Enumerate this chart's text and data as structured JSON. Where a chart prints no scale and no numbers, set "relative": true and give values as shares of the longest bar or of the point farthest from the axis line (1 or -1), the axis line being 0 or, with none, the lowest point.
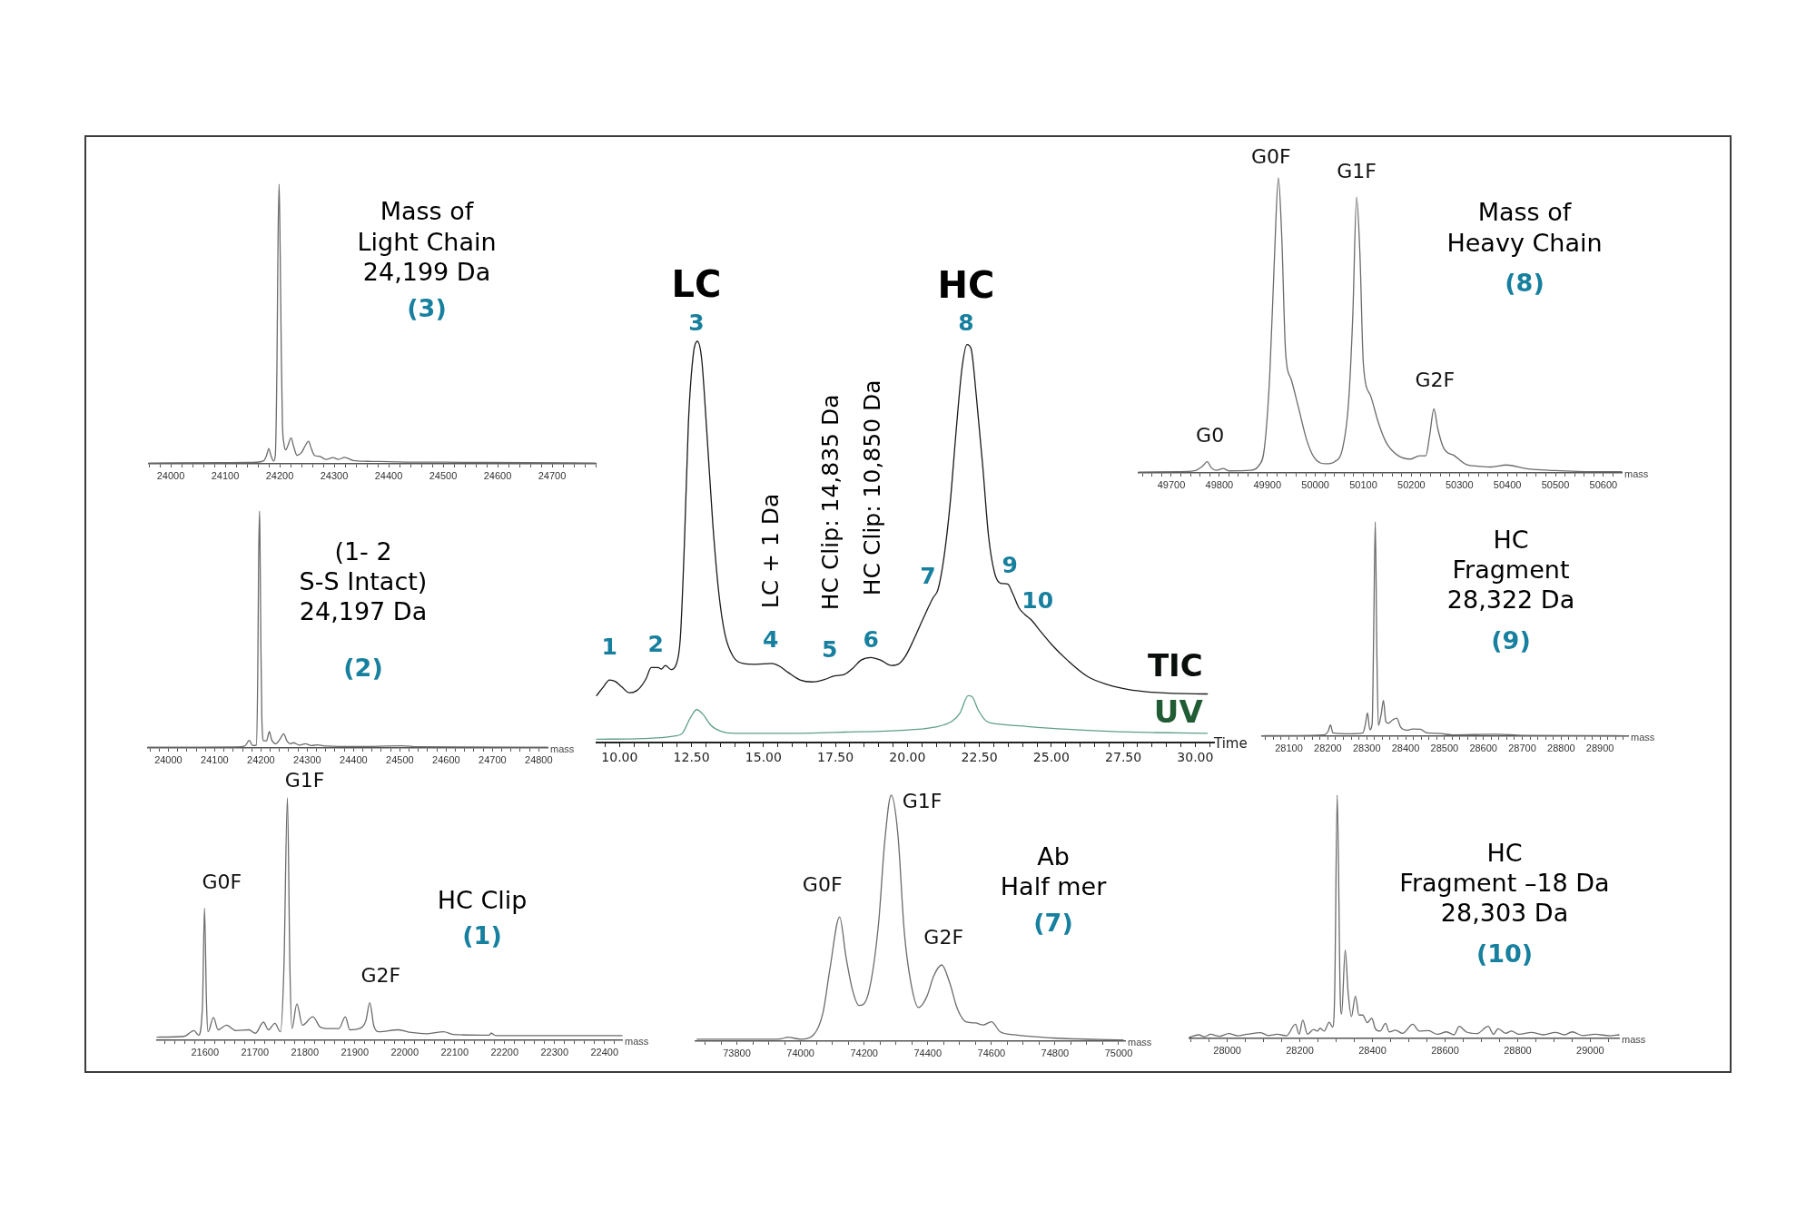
{
  "chart_data": [
    {
      "type": "line",
      "title": "Mass of\nLight Chain\n24,199 Da",
      "subtitle": "(3)",
      "relative": true,
      "color": "#6b6b6b",
      "x": [
        23960,
        24090,
        24150,
        24170,
        24176,
        24180,
        24184,
        24189,
        24192,
        24195,
        24197,
        24199,
        24201,
        24203,
        24205,
        24208,
        24211,
        24215,
        24221,
        24226,
        24232,
        24240,
        24247,
        24253,
        24258,
        24264,
        24273,
        24285,
        24298,
        24308,
        24319,
        24335,
        24360,
        24400,
        24450,
        24500,
        24570,
        24650,
        24780
      ],
      "values": [
        0.003,
        0.004,
        0.005,
        0.01,
        0.03,
        0.055,
        0.03,
        0.01,
        0.03,
        0.35,
        0.8,
        1,
        0.75,
        0.4,
        0.15,
        0.07,
        0.05,
        0.065,
        0.093,
        0.06,
        0.03,
        0.04,
        0.065,
        0.081,
        0.055,
        0.03,
        0.027,
        0.016,
        0.022,
        0.016,
        0.023,
        0.012,
        0.009,
        0.008,
        0.006,
        0.006,
        0.005,
        0.004,
        0.003
      ],
      "xlim": [
        23960,
        24780
      ],
      "xticks": [
        {
          "value": 23960,
          "label": null
        },
        {
          "value": 23980,
          "label": null
        },
        24000,
        {
          "value": 24020,
          "label": null
        },
        {
          "value": 24040,
          "label": null
        },
        {
          "value": 24060,
          "label": null
        },
        {
          "value": 24080,
          "label": null
        },
        24100,
        {
          "value": 24120,
          "label": null
        },
        {
          "value": 24140,
          "label": null
        },
        {
          "value": 24160,
          "label": null
        },
        {
          "value": 24180,
          "label": null
        },
        24200,
        {
          "value": 24220,
          "label": null
        },
        {
          "value": 24240,
          "label": null
        },
        {
          "value": 24260,
          "label": null
        },
        {
          "value": 24280,
          "label": null
        },
        24300,
        {
          "value": 24320,
          "label": null
        },
        {
          "value": 24340,
          "label": null
        },
        {
          "value": 24360,
          "label": null
        },
        {
          "value": 24380,
          "label": null
        },
        24400,
        {
          "value": 24420,
          "label": null
        },
        {
          "value": 24440,
          "label": null
        },
        {
          "value": 24460,
          "label": null
        },
        {
          "value": 24480,
          "label": null
        },
        24500,
        {
          "value": 24520,
          "label": null
        },
        {
          "value": 24540,
          "label": null
        },
        {
          "value": 24560,
          "label": null
        },
        {
          "value": 24580,
          "label": null
        },
        24600,
        {
          "value": 24620,
          "label": null
        },
        {
          "value": 24640,
          "label": null
        },
        {
          "value": 24660,
          "label": null
        },
        {
          "value": 24680,
          "label": null
        },
        24700,
        {
          "value": 24720,
          "label": null
        },
        {
          "value": 24740,
          "label": null
        },
        {
          "value": 24760,
          "label": null
        },
        {
          "value": 24780,
          "label": null
        }
      ]
    },
    {
      "type": "line",
      "relative": true,
      "xlabel": "Time",
      "series": [
        {
          "name": "TIC",
          "color": "#1a1a1a",
          "x": [
            9.2,
            9.44,
            9.65,
            9.86,
            10.07,
            10.35,
            10.63,
            10.92,
            11.1,
            11.34,
            11.45,
            11.59,
            11.79,
            11.97,
            12.11,
            12.25,
            12.39,
            12.56,
            12.7,
            12.85,
            13.03,
            13.24,
            13.45,
            13.66,
            13.94,
            14.3,
            14.72,
            15.28,
            15.56,
            15.85,
            16.27,
            16.69,
            17.11,
            17.46,
            17.82,
            18.1,
            18.38,
            18.73,
            19.08,
            19.44,
            19.72,
            19.93,
            20.21,
            20.56,
            20.89,
            21.06,
            21.27,
            21.48,
            21.69,
            21.9,
            22.07,
            22.21,
            22.39,
            22.61,
            22.82,
            23.03,
            23.24,
            23.48,
            23.66,
            23.87,
            24.08,
            24.3,
            24.58,
            25,
            25.56,
            26.27,
            26.97,
            27.68,
            28.38,
            29.08,
            30.42
          ],
          "values": [
            0.117,
            0.139,
            0.156,
            0.152,
            0.139,
            0.124,
            0.131,
            0.159,
            0.187,
            0.187,
            0.183,
            0.192,
            0.182,
            0.195,
            0.26,
            0.492,
            0.795,
            0.967,
            1,
            0.957,
            0.775,
            0.543,
            0.371,
            0.27,
            0.215,
            0.197,
            0.195,
            0.197,
            0.19,
            0.175,
            0.156,
            0.151,
            0.157,
            0.166,
            0.17,
            0.185,
            0.205,
            0.212,
            0.205,
            0.192,
            0.197,
            0.215,
            0.255,
            0.311,
            0.361,
            0.381,
            0.462,
            0.593,
            0.775,
            0.936,
            0.992,
            0.982,
            0.866,
            0.694,
            0.513,
            0.422,
            0.397,
            0.395,
            0.371,
            0.336,
            0.319,
            0.306,
            0.281,
            0.245,
            0.205,
            0.164,
            0.144,
            0.132,
            0.126,
            0.123,
            0.121
          ]
        },
        {
          "name": "UV",
          "color": "#5e9e8a",
          "x": [
            9.2,
            10.77,
            11.9,
            12.18,
            12.44,
            12.68,
            12.89,
            13.17,
            13.52,
            14.01,
            15.7,
            17.82,
            19.93,
            20.92,
            21.55,
            21.83,
            22.11,
            22.25,
            22.46,
            22.75,
            23.17,
            24.15,
            25.56,
            26.97,
            28.38,
            30.42
          ],
          "values": [
            0.008,
            0.01,
            0.016,
            0.023,
            0.059,
            0.082,
            0.071,
            0.043,
            0.028,
            0.023,
            0.023,
            0.026,
            0.031,
            0.038,
            0.053,
            0.074,
            0.117,
            0.114,
            0.081,
            0.053,
            0.046,
            0.04,
            0.033,
            0.028,
            0.025,
            0.023
          ]
        }
      ],
      "annotations": [
        {
          "text": "LC",
          "x": 12.7,
          "y": 1
        },
        {
          "text": "HC",
          "x": 22.07,
          "y": 0.992
        },
        {
          "text": "1",
          "x": 9.65,
          "y": 0.156
        },
        {
          "text": "2",
          "x": 11.1,
          "y": 0.187
        },
        {
          "text": "3",
          "x": 12.7,
          "y": 1
        },
        {
          "text": "4",
          "x": 15.28,
          "y": 0.197
        },
        {
          "text": "5",
          "x": 17.3,
          "y": 0.162
        },
        {
          "text": "6",
          "x": 18.73,
          "y": 0.212
        },
        {
          "text": "7",
          "x": 21.06,
          "y": 0.381
        },
        {
          "text": "8",
          "x": 22.07,
          "y": 0.992
        },
        {
          "text": "9",
          "x": 23.24,
          "y": 0.397
        },
        {
          "text": "10",
          "x": 24.08,
          "y": 0.319
        },
        {
          "text": "LC + 1 Da",
          "x": 15.28,
          "y": 0.197
        },
        {
          "text": "HC Clip: 14,835 Da",
          "x": 17.3,
          "y": 0.162
        },
        {
          "text": "HC Clip: 10,850 Da",
          "x": 18.73,
          "y": 0.212
        }
      ],
      "xlim": [
        9.2,
        30.65
      ],
      "xticks": [
        {
          "value": 9.5,
          "label": null
        },
        {
          "value": 10,
          "label": "10.00"
        },
        {
          "value": 10.5,
          "label": null
        },
        {
          "value": 11,
          "label": null
        },
        {
          "value": 11.5,
          "label": null
        },
        {
          "value": 12,
          "label": null
        },
        {
          "value": 12.5,
          "label": "12.50"
        },
        {
          "value": 13,
          "label": null
        },
        {
          "value": 13.5,
          "label": null
        },
        {
          "value": 14,
          "label": null
        },
        {
          "value": 14.5,
          "label": null
        },
        {
          "value": 15,
          "label": "15.00"
        },
        {
          "value": 15.5,
          "label": null
        },
        {
          "value": 16,
          "label": null
        },
        {
          "value": 16.5,
          "label": null
        },
        {
          "value": 17,
          "label": null
        },
        {
          "value": 17.5,
          "label": "17.50"
        },
        {
          "value": 18,
          "label": null
        },
        {
          "value": 18.5,
          "label": null
        },
        {
          "value": 19,
          "label": null
        },
        {
          "value": 19.5,
          "label": null
        },
        {
          "value": 20,
          "label": "20.00"
        },
        {
          "value": 20.5,
          "label": null
        },
        {
          "value": 21,
          "label": null
        },
        {
          "value": 21.5,
          "label": null
        },
        {
          "value": 22,
          "label": null
        },
        {
          "value": 22.5,
          "label": "22.50"
        },
        {
          "value": 23,
          "label": null
        },
        {
          "value": 23.5,
          "label": null
        },
        {
          "value": 24,
          "label": null
        },
        {
          "value": 24.5,
          "label": null
        },
        {
          "value": 25,
          "label": "25.00"
        },
        {
          "value": 25.5,
          "label": null
        },
        {
          "value": 26,
          "label": null
        },
        {
          "value": 26.5,
          "label": null
        },
        {
          "value": 27,
          "label": null
        },
        {
          "value": 27.5,
          "label": "27.50"
        },
        {
          "value": 28,
          "label": null
        },
        {
          "value": 28.5,
          "label": null
        },
        {
          "value": 29,
          "label": null
        },
        {
          "value": 29.5,
          "label": null
        },
        {
          "value": 30,
          "label": "30.00"
        },
        {
          "value": 30.5,
          "label": null
        }
      ]
    },
    {
      "type": "line",
      "title": "Mass of\nHeavy Chain",
      "subtitle": "(8)",
      "relative": true,
      "color": "#6b6b6b",
      "xlabel": "mass",
      "x": [
        49632,
        49715,
        49748,
        49765,
        49775,
        49783,
        49794,
        49808,
        49820,
        49865,
        49882,
        49894,
        49905,
        49915,
        49923,
        49930,
        49938,
        49950,
        49965,
        49982,
        49998,
        50023,
        50040,
        50057,
        50069,
        50078,
        50086,
        50093,
        50100,
        50115,
        50132,
        50148,
        50173,
        50198,
        50217,
        50230,
        50238,
        50247,
        50255,
        50267,
        50290,
        50315,
        50340,
        50365,
        50398,
        50440,
        50498,
        50582,
        50638
      ],
      "values": [
        0.003,
        0.004,
        0.007,
        0.023,
        0.038,
        0.018,
        0.009,
        0.015,
        0.007,
        0.009,
        0.024,
        0.085,
        0.329,
        0.736,
        1,
        0.804,
        0.411,
        0.316,
        0.221,
        0.112,
        0.051,
        0.031,
        0.038,
        0.085,
        0.234,
        0.533,
        0.935,
        0.736,
        0.37,
        0.262,
        0.167,
        0.102,
        0.058,
        0.047,
        0.058,
        0.058,
        0.126,
        0.217,
        0.15,
        0.085,
        0.058,
        0.028,
        0.023,
        0.02,
        0.027,
        0.014,
        0.008,
        0.004,
        0.004
      ],
      "annotations": [
        {
          "text": "G0",
          "x": 49775,
          "y": 0.038
        },
        {
          "text": "G0F",
          "x": 49923,
          "y": 1
        },
        {
          "text": "G1F",
          "x": 50086,
          "y": 0.935
        },
        {
          "text": "G2F",
          "x": 50247,
          "y": 0.217
        }
      ],
      "xlim": [
        49632,
        50638
      ],
      "xticks": [
        {
          "value": 49640,
          "label": null
        },
        {
          "value": 49660,
          "label": null
        },
        {
          "value": 49680,
          "label": null
        },
        49700,
        {
          "value": 49720,
          "label": null
        },
        {
          "value": 49740,
          "label": null
        },
        {
          "value": 49760,
          "label": null
        },
        {
          "value": 49780,
          "label": null
        },
        49800,
        {
          "value": 49820,
          "label": null
        },
        {
          "value": 49840,
          "label": null
        },
        {
          "value": 49860,
          "label": null
        },
        {
          "value": 49880,
          "label": null
        },
        49900,
        {
          "value": 49920,
          "label": null
        },
        {
          "value": 49940,
          "label": null
        },
        {
          "value": 49960,
          "label": null
        },
        {
          "value": 49980,
          "label": null
        },
        50000,
        {
          "value": 50020,
          "label": null
        },
        {
          "value": 50040,
          "label": null
        },
        {
          "value": 50060,
          "label": null
        },
        {
          "value": 50080,
          "label": null
        },
        50100,
        {
          "value": 50120,
          "label": null
        },
        {
          "value": 50140,
          "label": null
        },
        {
          "value": 50160,
          "label": null
        },
        {
          "value": 50180,
          "label": null
        },
        50200,
        {
          "value": 50220,
          "label": null
        },
        {
          "value": 50240,
          "label": null
        },
        {
          "value": 50260,
          "label": null
        },
        {
          "value": 50280,
          "label": null
        },
        50300,
        {
          "value": 50320,
          "label": null
        },
        {
          "value": 50340,
          "label": null
        },
        {
          "value": 50360,
          "label": null
        },
        {
          "value": 50380,
          "label": null
        },
        50400,
        {
          "value": 50420,
          "label": null
        },
        {
          "value": 50440,
          "label": null
        },
        {
          "value": 50460,
          "label": null
        },
        {
          "value": 50480,
          "label": null
        },
        50500,
        {
          "value": 50520,
          "label": null
        },
        {
          "value": 50540,
          "label": null
        },
        {
          "value": 50560,
          "label": null
        },
        {
          "value": 50580,
          "label": null
        },
        50600,
        {
          "value": 50620,
          "label": null
        }
      ]
    },
    {
      "type": "line",
      "title": "(1- 2\nS-S Intact)\n24,197 Da",
      "subtitle": "(2)",
      "relative": true,
      "color": "#6b6b6b",
      "xlabel": "mass",
      "x": [
        23956,
        24146,
        24165,
        24175,
        24182,
        24190,
        24193,
        24195,
        24197,
        24198,
        24200,
        24202,
        24206,
        24212,
        24218,
        24223,
        24232,
        24242,
        24249,
        24256,
        24263,
        24270,
        24283,
        24296,
        24309,
        24322,
        24342,
        24407,
        24505,
        24538,
        24819
      ],
      "values": [
        0.003,
        0.004,
        0.008,
        0.032,
        0.01,
        0.012,
        0.3,
        0.8,
        1,
        0.85,
        0.4,
        0.12,
        0.03,
        0.03,
        0.069,
        0.035,
        0.018,
        0.04,
        0.06,
        0.03,
        0.018,
        0.022,
        0.012,
        0.018,
        0.01,
        0.013,
        0.008,
        0.006,
        0.009,
        0.005,
        0.003
      ],
      "xlim": [
        23956,
        24819
      ],
      "xticks": [
        {
          "value": 23960,
          "label": null
        },
        {
          "value": 23980,
          "label": null
        },
        24000,
        {
          "value": 24020,
          "label": null
        },
        {
          "value": 24040,
          "label": null
        },
        {
          "value": 24060,
          "label": null
        },
        {
          "value": 24080,
          "label": null
        },
        24100,
        {
          "value": 24120,
          "label": null
        },
        {
          "value": 24140,
          "label": null
        },
        {
          "value": 24160,
          "label": null
        },
        {
          "value": 24180,
          "label": null
        },
        24200,
        {
          "value": 24220,
          "label": null
        },
        {
          "value": 24240,
          "label": null
        },
        {
          "value": 24260,
          "label": null
        },
        {
          "value": 24280,
          "label": null
        },
        24300,
        {
          "value": 24320,
          "label": null
        },
        {
          "value": 24340,
          "label": null
        },
        {
          "value": 24360,
          "label": null
        },
        {
          "value": 24380,
          "label": null
        },
        24400,
        {
          "value": 24420,
          "label": null
        },
        {
          "value": 24440,
          "label": null
        },
        {
          "value": 24460,
          "label": null
        },
        {
          "value": 24480,
          "label": null
        },
        24500,
        {
          "value": 24520,
          "label": null
        },
        {
          "value": 24540,
          "label": null
        },
        {
          "value": 24560,
          "label": null
        },
        {
          "value": 24580,
          "label": null
        },
        24600,
        {
          "value": 24620,
          "label": null
        },
        {
          "value": 24640,
          "label": null
        },
        {
          "value": 24660,
          "label": null
        },
        {
          "value": 24680,
          "label": null
        },
        24700,
        {
          "value": 24720,
          "label": null
        },
        {
          "value": 24740,
          "label": null
        },
        {
          "value": 24760,
          "label": null
        },
        {
          "value": 24780,
          "label": null
        },
        24800
      ]
    },
    {
      "type": "line",
      "title": "HC\nFragment\n28,322 Da",
      "subtitle": "(9)",
      "relative": true,
      "color": "#6b6b6b",
      "xlabel": "mass",
      "x": [
        28031,
        28190,
        28200,
        28207,
        28213,
        28259,
        28290,
        28296,
        28302,
        28308,
        28314,
        28318,
        28322,
        28326,
        28330,
        28337,
        28343,
        28349,
        28355,
        28367,
        28377,
        28387,
        28403,
        28418,
        28438,
        28455,
        28485,
        28520,
        28633,
        28700,
        28972
      ],
      "values": [
        0.002,
        0.006,
        0.02,
        0.052,
        0.015,
        0.011,
        0.015,
        0.05,
        0.108,
        0.03,
        0.06,
        0.5,
        1,
        0.4,
        0.05,
        0.1,
        0.167,
        0.07,
        0.06,
        0.076,
        0.084,
        0.043,
        0.028,
        0.033,
        0.032,
        0.015,
        0.013,
        0.006,
        0.009,
        0.004,
        0.002
      ],
      "xlim": [
        28031,
        28972
      ],
      "xticks": [
        {
          "value": 28040,
          "label": null
        },
        {
          "value": 28060,
          "label": null
        },
        {
          "value": 28080,
          "label": null
        },
        28100,
        {
          "value": 28120,
          "label": null
        },
        {
          "value": 28140,
          "label": null
        },
        {
          "value": 28160,
          "label": null
        },
        {
          "value": 28180,
          "label": null
        },
        28200,
        {
          "value": 28220,
          "label": null
        },
        {
          "value": 28240,
          "label": null
        },
        {
          "value": 28260,
          "label": null
        },
        {
          "value": 28280,
          "label": null
        },
        28300,
        {
          "value": 28320,
          "label": null
        },
        {
          "value": 28340,
          "label": null
        },
        {
          "value": 28360,
          "label": null
        },
        {
          "value": 28380,
          "label": null
        },
        28400,
        {
          "value": 28420,
          "label": null
        },
        {
          "value": 28440,
          "label": null
        },
        {
          "value": 28460,
          "label": null
        },
        {
          "value": 28480,
          "label": null
        },
        28500,
        {
          "value": 28520,
          "label": null
        },
        {
          "value": 28540,
          "label": null
        },
        {
          "value": 28560,
          "label": null
        },
        {
          "value": 28580,
          "label": null
        },
        28600,
        {
          "value": 28620,
          "label": null
        },
        {
          "value": 28640,
          "label": null
        },
        {
          "value": 28660,
          "label": null
        },
        {
          "value": 28680,
          "label": null
        },
        28700,
        {
          "value": 28720,
          "label": null
        },
        {
          "value": 28740,
          "label": null
        },
        {
          "value": 28760,
          "label": null
        },
        {
          "value": 28780,
          "label": null
        },
        28800,
        {
          "value": 28820,
          "label": null
        },
        {
          "value": 28840,
          "label": null
        },
        {
          "value": 28860,
          "label": null
        },
        {
          "value": 28880,
          "label": null
        },
        28900,
        {
          "value": 28920,
          "label": null
        },
        {
          "value": 28940,
          "label": null
        },
        {
          "value": 28960,
          "label": null
        }
      ]
    },
    {
      "type": "line",
      "title": "HC Clip",
      "subtitle": "(1)",
      "relative": true,
      "color": "#6b6b6b",
      "xlabel": "mass",
      "x": [
        21504,
        21558,
        21578,
        21587,
        21595,
        21599,
        21603,
        21606,
        21617,
        21626,
        21643,
        21662,
        21688,
        21701,
        21717,
        21727,
        21740,
        21751,
        21758,
        21765,
        21770,
        21774,
        21784,
        21795,
        21816,
        21831,
        21851,
        21868,
        21881,
        21890,
        21909,
        21922,
        21930,
        21938,
        21948,
        21987,
        22013,
        22045,
        22078,
        22097,
        22169,
        22173,
        22182,
        22260,
        22435
      ],
      "values": [
        0.013,
        0.016,
        0.04,
        0.021,
        0.15,
        0.544,
        0.15,
        0.035,
        0.094,
        0.043,
        0.062,
        0.04,
        0.043,
        0.029,
        0.075,
        0.043,
        0.07,
        0.035,
        0.3,
        1,
        0.3,
        0.048,
        0.15,
        0.062,
        0.097,
        0.054,
        0.048,
        0.048,
        0.097,
        0.043,
        0.048,
        0.08,
        0.155,
        0.06,
        0.035,
        0.043,
        0.032,
        0.027,
        0.035,
        0.024,
        0.021,
        0.029,
        0.019,
        0.019,
        0.019
      ],
      "annotations": [
        {
          "text": "G0F",
          "x": 21599,
          "y": 0.544
        },
        {
          "text": "G1F",
          "x": 21765,
          "y": 1
        },
        {
          "text": "G2F",
          "x": 21930,
          "y": 0.155
        }
      ],
      "xlim": [
        21504,
        22435
      ],
      "xticks": [
        {
          "value": 21520,
          "label": null
        },
        {
          "value": 21540,
          "label": null
        },
        {
          "value": 21560,
          "label": null
        },
        {
          "value": 21580,
          "label": null
        },
        21600,
        {
          "value": 21620,
          "label": null
        },
        {
          "value": 21640,
          "label": null
        },
        {
          "value": 21660,
          "label": null
        },
        {
          "value": 21680,
          "label": null
        },
        21700,
        {
          "value": 21720,
          "label": null
        },
        {
          "value": 21740,
          "label": null
        },
        {
          "value": 21760,
          "label": null
        },
        {
          "value": 21780,
          "label": null
        },
        21800,
        {
          "value": 21820,
          "label": null
        },
        {
          "value": 21840,
          "label": null
        },
        {
          "value": 21860,
          "label": null
        },
        {
          "value": 21880,
          "label": null
        },
        21900,
        {
          "value": 21920,
          "label": null
        },
        {
          "value": 21940,
          "label": null
        },
        {
          "value": 21960,
          "label": null
        },
        {
          "value": 21980,
          "label": null
        },
        22000,
        {
          "value": 22020,
          "label": null
        },
        {
          "value": 22040,
          "label": null
        },
        {
          "value": 22060,
          "label": null
        },
        {
          "value": 22080,
          "label": null
        },
        22100,
        {
          "value": 22120,
          "label": null
        },
        {
          "value": 22140,
          "label": null
        },
        {
          "value": 22160,
          "label": null
        },
        {
          "value": 22180,
          "label": null
        },
        22200,
        {
          "value": 22220,
          "label": null
        },
        {
          "value": 22240,
          "label": null
        },
        {
          "value": 22260,
          "label": null
        },
        {
          "value": 22280,
          "label": null
        },
        22300,
        {
          "value": 22320,
          "label": null
        },
        {
          "value": 22340,
          "label": null
        },
        {
          "value": 22360,
          "label": null
        },
        {
          "value": 22380,
          "label": null
        },
        22400,
        {
          "value": 22420,
          "label": null
        }
      ]
    },
    {
      "type": "line",
      "title": "Ab\nHalf mer",
      "subtitle": "(7)",
      "relative": true,
      "color": "#6b6b6b",
      "xlabel": "mass",
      "x": [
        73675,
        73900,
        73940,
        73960,
        74001,
        74041,
        74071,
        74092,
        74123,
        74143,
        74164,
        74184,
        74214,
        74245,
        74265,
        74285,
        74306,
        74326,
        74347,
        74371,
        74398,
        74418,
        74444,
        74469,
        74493,
        74520,
        74550,
        74574,
        74600,
        74627,
        74672,
        74794,
        75014
      ],
      "values": [
        0.008,
        0.008,
        0.01,
        0.016,
        0.008,
        0.026,
        0.118,
        0.29,
        0.505,
        0.342,
        0.205,
        0.145,
        0.197,
        0.474,
        0.816,
        1,
        0.842,
        0.447,
        0.237,
        0.137,
        0.184,
        0.263,
        0.31,
        0.237,
        0.132,
        0.079,
        0.074,
        0.066,
        0.079,
        0.039,
        0.026,
        0.013,
        0.005
      ],
      "annotations": [
        {
          "text": "G0F",
          "x": 74123,
          "y": 0.505
        },
        {
          "text": "G1F",
          "x": 74285,
          "y": 1
        },
        {
          "text": "G2F",
          "x": 74444,
          "y": 0.31
        }
      ],
      "xlim": [
        73670,
        75020
      ],
      "xticks": [
        {
          "value": 73700,
          "label": null
        },
        {
          "value": 73750,
          "label": null
        },
        73800,
        {
          "value": 73850,
          "label": null
        },
        {
          "value": 73900,
          "label": null
        },
        {
          "value": 73950,
          "label": null
        },
        74000,
        {
          "value": 74050,
          "label": null
        },
        {
          "value": 74100,
          "label": null
        },
        {
          "value": 74150,
          "label": null
        },
        74200,
        {
          "value": 74250,
          "label": null
        },
        {
          "value": 74300,
          "label": null
        },
        {
          "value": 74350,
          "label": null
        },
        74400,
        {
          "value": 74450,
          "label": null
        },
        {
          "value": 74500,
          "label": null
        },
        {
          "value": 74550,
          "label": null
        },
        74600,
        {
          "value": 74650,
          "label": null
        },
        {
          "value": 74700,
          "label": null
        },
        {
          "value": 74750,
          "label": null
        },
        74800,
        {
          "value": 74850,
          "label": null
        },
        {
          "value": 74900,
          "label": null
        },
        {
          "value": 74950,
          "label": null
        },
        75000
      ]
    },
    {
      "type": "line",
      "title": "HC\nFragment –18 Da\n28,303 Da",
      "subtitle": "(10)",
      "relative": true,
      "color": "#6b6b6b",
      "xlabel": "mass",
      "x": [
        27896,
        27921,
        27938,
        27954,
        27979,
        28004,
        28029,
        28054,
        28092,
        28113,
        28138,
        28163,
        28188,
        28198,
        28208,
        28221,
        28238,
        28248,
        28256,
        28267,
        28281,
        28290,
        28296,
        28303,
        28311,
        28315,
        28325,
        28333,
        28342,
        28353,
        28363,
        28373,
        28386,
        28398,
        28408,
        28421,
        28436,
        28446,
        28463,
        28483,
        28511,
        28529,
        28554,
        28579,
        28604,
        28625,
        28639,
        28658,
        28688,
        28719,
        28733,
        28746,
        28767,
        28783,
        28804,
        28838,
        28871,
        28904,
        28929,
        28950,
        28979,
        29013,
        29054,
        29079
      ],
      "values": [
        0.005,
        0.015,
        0.007,
        0.017,
        0.009,
        0.02,
        0.011,
        0.017,
        0.024,
        0.012,
        0.017,
        0.011,
        0.058,
        0.017,
        0.075,
        0.017,
        0.037,
        0.03,
        0.042,
        0.03,
        0.067,
        0.046,
        0.189,
        1,
        0.189,
        0.1,
        0.363,
        0.189,
        0.09,
        0.174,
        0.096,
        0.096,
        0.065,
        0.083,
        0.04,
        0.03,
        0.062,
        0.027,
        0.034,
        0.021,
        0.058,
        0.03,
        0.032,
        0.017,
        0.027,
        0.015,
        0.05,
        0.027,
        0.02,
        0.05,
        0.017,
        0.04,
        0.021,
        0.03,
        0.017,
        0.025,
        0.015,
        0.025,
        0.015,
        0.027,
        0.012,
        0.017,
        0.011,
        0.015
      ],
      "xlim": [
        27896,
        29079
      ],
      "xticks": [
        {
          "value": 27900,
          "label": null
        },
        {
          "value": 27950,
          "label": null
        },
        28000,
        {
          "value": 28050,
          "label": null
        },
        {
          "value": 28100,
          "label": null
        },
        {
          "value": 28150,
          "label": null
        },
        28200,
        {
          "value": 28250,
          "label": null
        },
        {
          "value": 28300,
          "label": null
        },
        {
          "value": 28350,
          "label": null
        },
        28400,
        {
          "value": 28450,
          "label": null
        },
        {
          "value": 28500,
          "label": null
        },
        {
          "value": 28550,
          "label": null
        },
        28600,
        {
          "value": 28650,
          "label": null
        },
        {
          "value": 28700,
          "label": null
        },
        {
          "value": 28750,
          "label": null
        },
        28800,
        {
          "value": 28850,
          "label": null
        },
        {
          "value": 28900,
          "label": null
        },
        {
          "value": 28950,
          "label": null
        },
        29000,
        {
          "value": 29050,
          "label": null
        }
      ]
    }
  ]
}
